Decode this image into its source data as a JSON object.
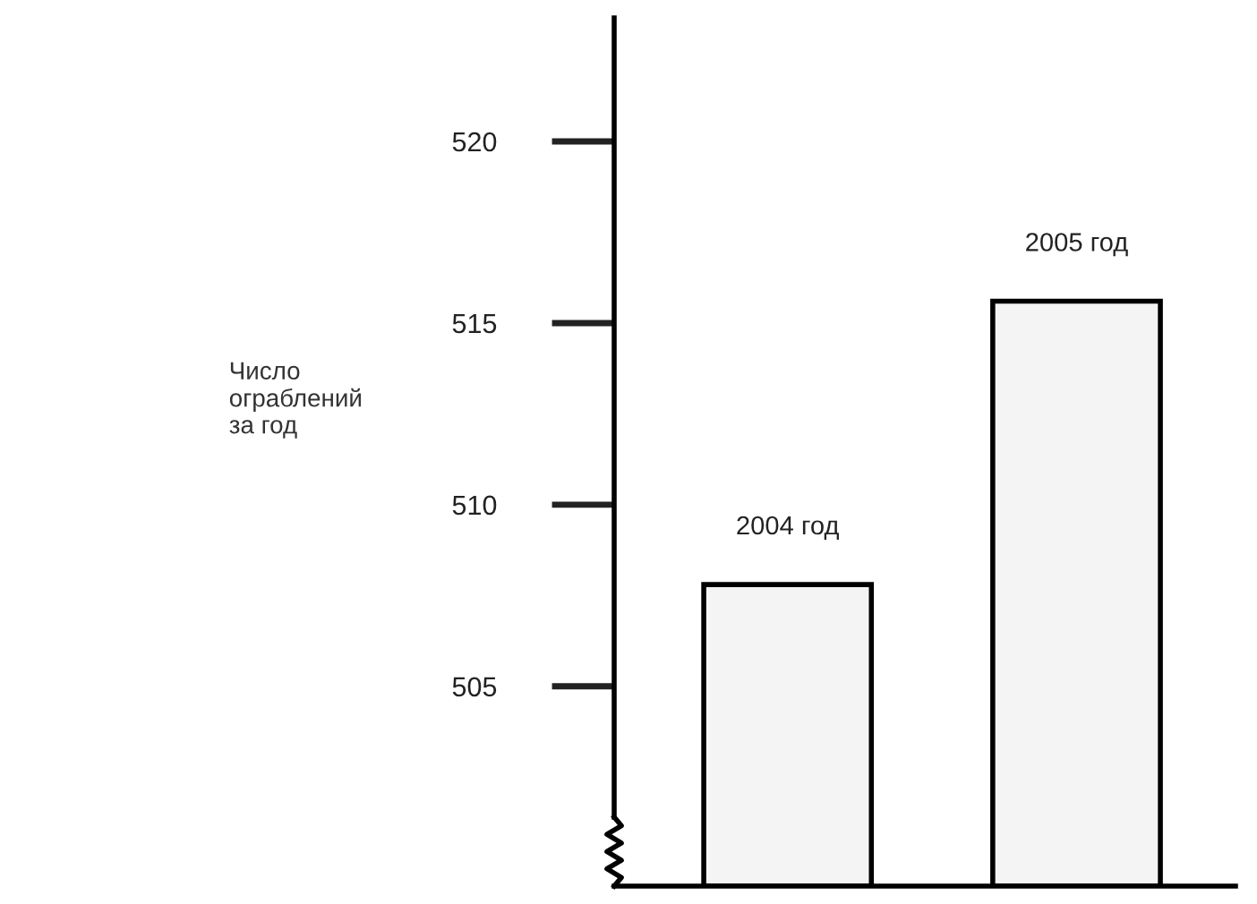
{
  "chart_data": {
    "type": "bar",
    "ylabel": "Число\nограблений\nза год",
    "categories": [
      "2004 год",
      "2005 год"
    ],
    "series": [
      {
        "color": "#f4f4f4",
        "values": [
          507.8,
          515.6
        ]
      }
    ],
    "ylim": [
      499.5,
      523.4
    ],
    "yticks": [
      505,
      510,
      515,
      520
    ],
    "grid": false,
    "legend": false,
    "tick_labels": "y"
  }
}
